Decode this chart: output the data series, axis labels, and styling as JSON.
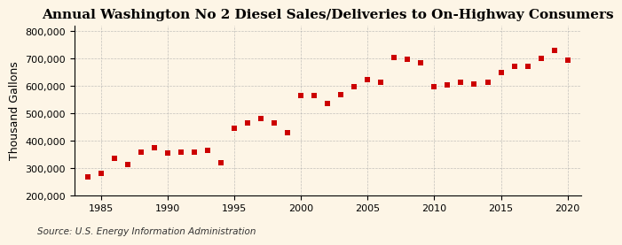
{
  "title": "Annual Washington No 2 Diesel Sales/Deliveries to On-Highway Consumers",
  "ylabel": "Thousand Gallons",
  "source": "Source: U.S. Energy Information Administration",
  "background_color": "#fdf5e6",
  "marker_color": "#cc0000",
  "grid_color": "#aaaaaa",
  "years": [
    1984,
    1985,
    1986,
    1987,
    1988,
    1989,
    1990,
    1991,
    1992,
    1993,
    1994,
    1995,
    1996,
    1997,
    1998,
    1999,
    2000,
    2001,
    2002,
    2003,
    2004,
    2005,
    2006,
    2007,
    2008,
    2009,
    2010,
    2011,
    2012,
    2013,
    2014,
    2015,
    2016,
    2017,
    2018,
    2019,
    2020
  ],
  "values": [
    268000,
    280000,
    335000,
    315000,
    360000,
    375000,
    355000,
    358000,
    360000,
    365000,
    320000,
    445000,
    465000,
    482000,
    465000,
    430000,
    567000,
    565000,
    538000,
    570000,
    597000,
    625000,
    615000,
    705000,
    698000,
    685000,
    598000,
    605000,
    615000,
    607000,
    615000,
    650000,
    673000,
    673000,
    702000,
    730000,
    693000
  ],
  "ylim": [
    200000,
    820000
  ],
  "xlim": [
    1983,
    2021
  ],
  "yticks": [
    200000,
    300000,
    400000,
    500000,
    600000,
    700000,
    800000
  ],
  "xticks": [
    1985,
    1990,
    1995,
    2000,
    2005,
    2010,
    2015,
    2020
  ],
  "title_fontsize": 11,
  "label_fontsize": 9,
  "tick_fontsize": 8,
  "source_fontsize": 7.5,
  "marker_size": 16
}
